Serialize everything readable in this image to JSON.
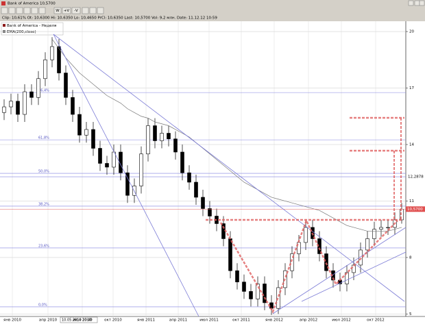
{
  "window": {
    "title": "Bank of America 10,5700"
  },
  "toolbar": {
    "buttons": [
      "W",
      "+V",
      "-V"
    ]
  },
  "info_line": "Clip: 10,61%   Ot: 10,6300   Hi: 10,6350   Lo: 10,4650   PrCl: 10,6350   Last: 10,5700   Vol: 9,2 млн.   Date: 11.12.12 10:59",
  "legend": [
    "Bank of America - Неделя",
    "EMA(200,close)"
  ],
  "cursor_label": "10.05.2010 10:40",
  "chart_data": {
    "type": "candlestick",
    "open": [
      15.7,
      16,
      16.3,
      15.6,
      16.8,
      16.5,
      17.5,
      18.5,
      19.2,
      17.8,
      16.5,
      15.6,
      14.5,
      14.8,
      13.8,
      13,
      12.8,
      13.6,
      12.5,
      11.3,
      11.8,
      13.5,
      15,
      14.2,
      14.6,
      14.3,
      13.6,
      12.5,
      12,
      11.2,
      10.6,
      10.2,
      9.8,
      9,
      7.3,
      6.7,
      6.2,
      5.8,
      6.6,
      5.6,
      5.3,
      6.4,
      7.3,
      8.2,
      8.8,
      9.6,
      9,
      8.2,
      7.3,
      6.8,
      6.6,
      7.2,
      7.6,
      8.4,
      9,
      9.5,
      9.6,
      9.6,
      10
    ],
    "high": [
      16.4,
      16.7,
      16.7,
      17.2,
      17.2,
      17.9,
      18.9,
      19.7,
      19.6,
      18.2,
      16.9,
      16,
      15.2,
      15.2,
      14.2,
      13.4,
      14,
      14,
      12.9,
      12.2,
      13.9,
      15.4,
      15.4,
      15,
      15,
      14.7,
      14,
      12.9,
      12.4,
      11.6,
      11,
      10.6,
      10.2,
      9.4,
      7.7,
      7.1,
      6.6,
      7,
      7,
      6,
      6.8,
      7.7,
      8.6,
      9.2,
      10,
      10,
      9.4,
      8.6,
      7.7,
      7.2,
      7.6,
      8,
      8.8,
      9.4,
      9.9,
      10,
      10,
      10.4,
      10.9
    ],
    "low": [
      15.3,
      15.6,
      15.2,
      15.2,
      16.1,
      16.1,
      17.1,
      18.1,
      17.4,
      16.1,
      15.2,
      14.1,
      14.1,
      13.4,
      12.6,
      12.4,
      12.4,
      12.1,
      10.9,
      10.9,
      11.4,
      13.1,
      13.8,
      13.8,
      13.9,
      13.2,
      12.1,
      11.6,
      10.8,
      10.2,
      9.8,
      9.4,
      8.6,
      6.9,
      6.3,
      5.8,
      5.4,
      5.4,
      5.2,
      4.95,
      5,
      6,
      6.9,
      7.8,
      8.4,
      8.6,
      7.8,
      6.9,
      6.4,
      6.2,
      6.2,
      6.8,
      7.2,
      8,
      8.6,
      9.1,
      9.2,
      9.2,
      9.8
    ],
    "close": [
      16,
      16.3,
      15.6,
      16.8,
      16.5,
      17.5,
      18.5,
      19.2,
      17.8,
      16.5,
      15.6,
      14.5,
      14.8,
      13.8,
      13,
      12.8,
      13.6,
      12.5,
      11.3,
      11.8,
      13.5,
      15,
      14.2,
      14.6,
      14.3,
      13.6,
      12.5,
      12,
      11.2,
      10.6,
      10.2,
      9.8,
      9,
      7.3,
      6.7,
      6.2,
      5.8,
      6.6,
      5.6,
      5.3,
      6.4,
      7.3,
      8.2,
      8.8,
      9.6,
      9,
      8.2,
      7.3,
      6.8,
      6.6,
      7.2,
      7.6,
      8.4,
      9,
      9.5,
      9.6,
      9.6,
      10,
      10.57
    ],
    "ema": [
      null,
      null,
      null,
      null,
      null,
      null,
      null,
      19.6,
      19.1,
      18.6,
      18.2,
      17.8,
      17.5,
      17.2,
      16.9,
      16.6,
      16.4,
      16.2,
      15.9,
      15.7,
      15.5,
      15.4,
      15.2,
      15.1,
      15,
      14.8,
      14.6,
      14.4,
      14.1,
      13.8,
      13.5,
      13.2,
      12.9,
      12.6,
      12.3,
      12,
      11.8,
      11.6,
      11.4,
      11.2,
      11.1,
      11,
      10.9,
      10.8,
      10.7,
      10.6,
      10.5,
      10.3,
      10.1,
      9.9,
      9.7,
      9.6,
      9.5,
      9.4,
      9.4,
      9.4,
      9.4,
      9.5,
      9.6
    ],
    "ema_color": "#777777",
    "up_color": "#ffffff",
    "down_color": "#000000",
    "ylim": [
      4.87,
      20.22
    ],
    "yticks": [
      20,
      17,
      14,
      11,
      8,
      5
    ],
    "price_levels": [
      {
        "value": 12.2878,
        "label": "12,2878"
      }
    ],
    "last_price": {
      "value": 10.57,
      "label": "10,5700"
    },
    "fib_levels": [
      {
        "value": 16.76,
        "label": "76,4%"
      },
      {
        "value": 14.25,
        "label": "61,8%"
      },
      {
        "value": 12.47,
        "label": "50,0%"
      },
      {
        "value": 10.73,
        "label": "38,2%"
      },
      {
        "value": 8.51,
        "label": "23,6%"
      },
      {
        "value": 5.38,
        "label": "0,0%"
      }
    ],
    "xticks": [
      {
        "value": 1.2,
        "label": "янв 2010"
      },
      {
        "value": 6.4,
        "label": "апр 2010"
      },
      {
        "value": 11.4,
        "label": "июл 2010"
      },
      {
        "value": 15.9,
        "label": "окт 2010"
      },
      {
        "value": 20.7,
        "label": "янв 2011"
      },
      {
        "value": 25.4,
        "label": "апр 2011"
      },
      {
        "value": 29.9,
        "label": "июл 2011"
      },
      {
        "value": 34.6,
        "label": "окт 2011"
      },
      {
        "value": 39.4,
        "label": "янв 2012"
      },
      {
        "value": 44.4,
        "label": "апр 2012"
      },
      {
        "value": 49.2,
        "label": "июл 2012"
      },
      {
        "value": 54.2,
        "label": "окт 2012"
      }
    ]
  }
}
